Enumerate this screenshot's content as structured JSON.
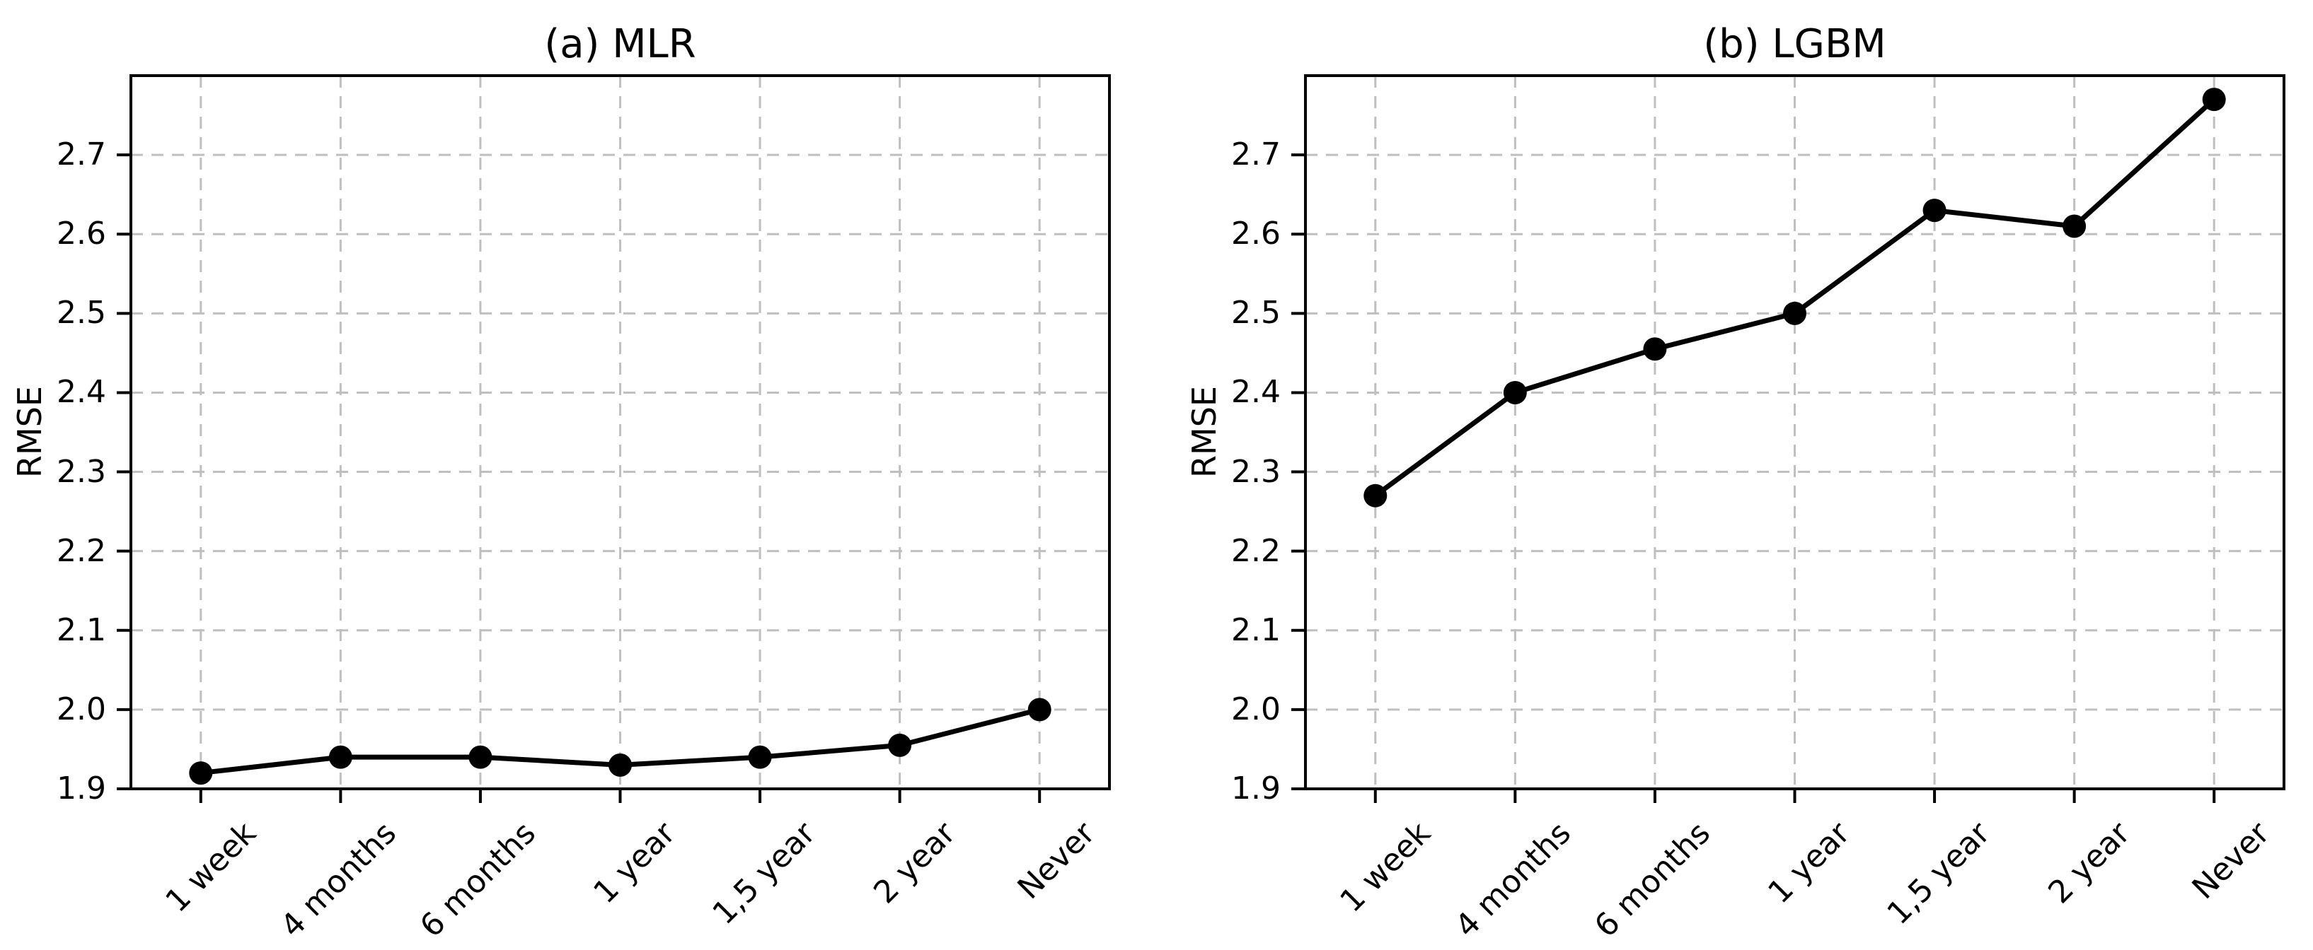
{
  "figure": {
    "background_color": "#ffffff",
    "grid_color": "#bfbfbf",
    "line_color": "#000000",
    "text_color": "#000000"
  },
  "chart_data": [
    {
      "type": "line",
      "title": "(a) MLR",
      "categories": [
        "1 week",
        "4 months",
        "6 months",
        "1 year",
        "1,5 year",
        "2 year",
        "Never"
      ],
      "values": [
        1.92,
        1.94,
        1.94,
        1.93,
        1.94,
        1.955,
        2.0
      ],
      "xlabel": "",
      "ylabel": "RMSE",
      "ylim": [
        1.9,
        2.8
      ],
      "yticks": [
        1.9,
        2.0,
        2.1,
        2.2,
        2.3,
        2.4,
        2.5,
        2.6,
        2.7
      ],
      "grid": true,
      "grid_style": "dashed",
      "legend": "none",
      "line_color": "#000000",
      "marker": "circle",
      "x_tick_rotation_deg": 45
    },
    {
      "type": "line",
      "title": "(b) LGBM",
      "categories": [
        "1 week",
        "4 months",
        "6 months",
        "1 year",
        "1,5 year",
        "2 year",
        "Never"
      ],
      "values": [
        2.27,
        2.4,
        2.455,
        2.5,
        2.63,
        2.61,
        2.77
      ],
      "xlabel": "",
      "ylabel": "RMSE",
      "ylim": [
        1.9,
        2.8
      ],
      "yticks": [
        1.9,
        2.0,
        2.1,
        2.2,
        2.3,
        2.4,
        2.5,
        2.6,
        2.7
      ],
      "grid": true,
      "grid_style": "dashed",
      "legend": "none",
      "line_color": "#000000",
      "marker": "circle",
      "x_tick_rotation_deg": 45
    }
  ]
}
